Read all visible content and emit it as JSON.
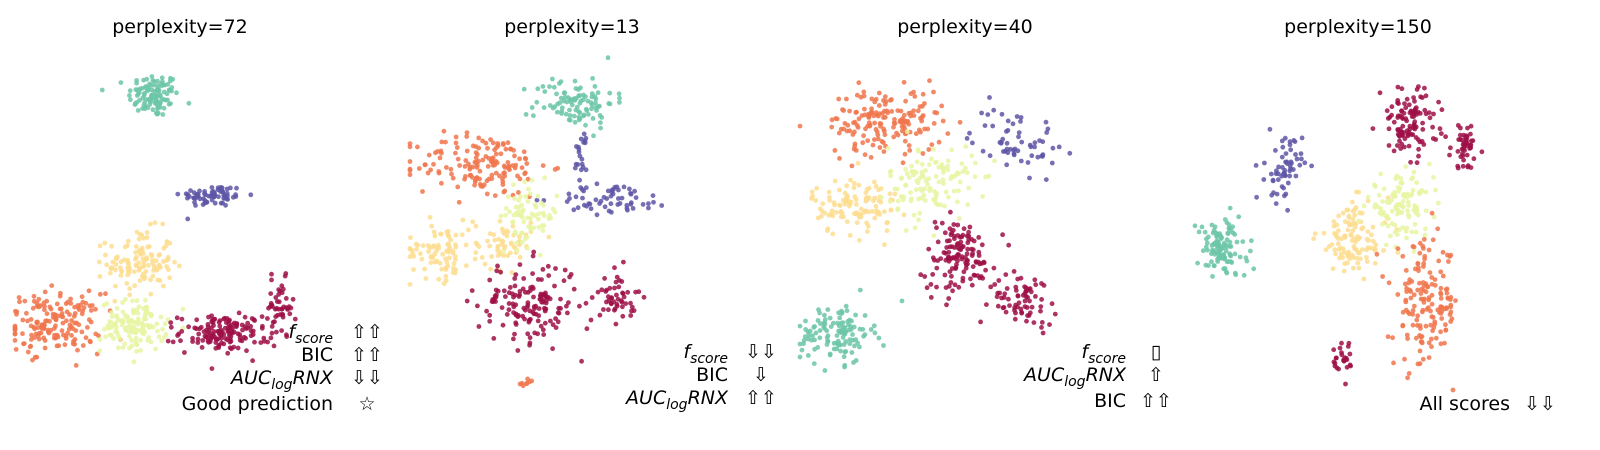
{
  "colors": {
    "teal": "#6cc5a8",
    "purple": "#5e56a6",
    "orange": "#f0764c",
    "peach": "#fddd8f",
    "lime": "#e8f4a2",
    "crimson": "#9e0f46"
  },
  "chart_data": [
    {
      "type": "scatter",
      "title": "perplexity=72",
      "grid": false,
      "axes_visible": false,
      "annotations": [
        {
          "metric": "f_score",
          "arrows": "⇧⇧"
        },
        {
          "metric": "BIC",
          "arrows": "⇧⇧"
        },
        {
          "metric": "AUC_logRNX",
          "arrows": "⇩⇩"
        },
        {
          "metric": "Good prediction",
          "arrows": "☆"
        }
      ],
      "clusters": [
        {
          "color": "teal",
          "cx": 0.42,
          "cy": 0.88,
          "rx": 0.07,
          "ry": 0.06,
          "n": 110
        },
        {
          "color": "purple",
          "cx": 0.6,
          "cy": 0.58,
          "rx": 0.09,
          "ry": 0.03,
          "n": 70
        },
        {
          "color": "peach",
          "cx": 0.38,
          "cy": 0.38,
          "rx": 0.09,
          "ry": 0.09,
          "n": 120
        },
        {
          "color": "orange",
          "cx": 0.12,
          "cy": 0.2,
          "rx": 0.13,
          "ry": 0.08,
          "n": 170
        },
        {
          "color": "lime",
          "cx": 0.36,
          "cy": 0.19,
          "rx": 0.09,
          "ry": 0.07,
          "n": 130
        },
        {
          "color": "crimson",
          "cx": 0.63,
          "cy": 0.17,
          "rx": 0.12,
          "ry": 0.05,
          "n": 150
        },
        {
          "color": "crimson",
          "cx": 0.8,
          "cy": 0.24,
          "rx": 0.04,
          "ry": 0.08,
          "n": 50
        }
      ]
    },
    {
      "type": "scatter",
      "title": "perplexity=13",
      "grid": false,
      "axes_visible": false,
      "annotations": [
        {
          "metric": "f_score",
          "arrows": "⇩⇩"
        },
        {
          "metric": "BIC",
          "arrows": "⇩"
        },
        {
          "metric": "AUC_logRNX",
          "arrows": "⇧⇧"
        }
      ],
      "clusters": [
        {
          "color": "teal",
          "cx": 0.5,
          "cy": 0.86,
          "rx": 0.11,
          "ry": 0.07,
          "n": 100
        },
        {
          "color": "orange",
          "cx": 0.22,
          "cy": 0.67,
          "rx": 0.18,
          "ry": 0.09,
          "n": 150
        },
        {
          "color": "purple",
          "cx": 0.62,
          "cy": 0.57,
          "rx": 0.16,
          "ry": 0.04,
          "n": 60
        },
        {
          "color": "purple",
          "cx": 0.52,
          "cy": 0.7,
          "rx": 0.02,
          "ry": 0.07,
          "n": 20
        },
        {
          "color": "peach",
          "cx": 0.09,
          "cy": 0.42,
          "rx": 0.09,
          "ry": 0.08,
          "n": 80
        },
        {
          "color": "peach",
          "cx": 0.28,
          "cy": 0.44,
          "rx": 0.08,
          "ry": 0.07,
          "n": 60
        },
        {
          "color": "lime",
          "cx": 0.36,
          "cy": 0.52,
          "rx": 0.08,
          "ry": 0.08,
          "n": 70
        },
        {
          "color": "crimson",
          "cx": 0.36,
          "cy": 0.26,
          "rx": 0.14,
          "ry": 0.11,
          "n": 150
        },
        {
          "color": "crimson",
          "cx": 0.63,
          "cy": 0.28,
          "rx": 0.05,
          "ry": 0.07,
          "n": 50
        },
        {
          "color": "orange",
          "cx": 0.35,
          "cy": 0.02,
          "rx": 0.02,
          "ry": 0.01,
          "n": 8
        }
      ]
    },
    {
      "type": "scatter",
      "title": "perplexity=40",
      "grid": false,
      "axes_visible": false,
      "annotations": [
        {
          "metric": "f_score",
          "arrows": "▯"
        },
        {
          "metric": "AUC_logRNX",
          "arrows": "⇧"
        },
        {
          "metric": "BIC",
          "arrows": "⇧⇧"
        }
      ],
      "clusters": [
        {
          "color": "orange",
          "cx": 0.26,
          "cy": 0.8,
          "rx": 0.16,
          "ry": 0.09,
          "n": 170
        },
        {
          "color": "purple",
          "cx": 0.65,
          "cy": 0.75,
          "rx": 0.12,
          "ry": 0.09,
          "n": 60
        },
        {
          "color": "peach",
          "cx": 0.17,
          "cy": 0.55,
          "rx": 0.12,
          "ry": 0.08,
          "n": 110
        },
        {
          "color": "lime",
          "cx": 0.4,
          "cy": 0.62,
          "rx": 0.12,
          "ry": 0.1,
          "n": 120
        },
        {
          "color": "crimson",
          "cx": 0.48,
          "cy": 0.4,
          "rx": 0.1,
          "ry": 0.1,
          "n": 130
        },
        {
          "color": "crimson",
          "cx": 0.68,
          "cy": 0.27,
          "rx": 0.09,
          "ry": 0.07,
          "n": 70
        },
        {
          "color": "teal",
          "cx": 0.11,
          "cy": 0.17,
          "rx": 0.1,
          "ry": 0.08,
          "n": 120
        }
      ]
    },
    {
      "type": "scatter",
      "title": "perplexity=150",
      "grid": false,
      "axes_visible": false,
      "annotations": [
        {
          "metric": "All scores",
          "arrows": "⇩⇩"
        }
      ],
      "clusters": [
        {
          "color": "teal",
          "cx": 0.08,
          "cy": 0.42,
          "rx": 0.07,
          "ry": 0.08,
          "n": 110
        },
        {
          "color": "purple",
          "cx": 0.27,
          "cy": 0.66,
          "rx": 0.05,
          "ry": 0.09,
          "n": 60
        },
        {
          "color": "crimson",
          "cx": 0.65,
          "cy": 0.8,
          "rx": 0.08,
          "ry": 0.09,
          "n": 110
        },
        {
          "color": "crimson",
          "cx": 0.82,
          "cy": 0.73,
          "rx": 0.04,
          "ry": 0.06,
          "n": 50
        },
        {
          "color": "peach",
          "cx": 0.48,
          "cy": 0.45,
          "rx": 0.1,
          "ry": 0.1,
          "n": 110
        },
        {
          "color": "lime",
          "cx": 0.62,
          "cy": 0.55,
          "rx": 0.09,
          "ry": 0.08,
          "n": 110
        },
        {
          "color": "orange",
          "cx": 0.7,
          "cy": 0.25,
          "rx": 0.09,
          "ry": 0.17,
          "n": 160
        },
        {
          "color": "crimson",
          "cx": 0.45,
          "cy": 0.09,
          "rx": 0.03,
          "ry": 0.05,
          "n": 25
        }
      ]
    }
  ]
}
